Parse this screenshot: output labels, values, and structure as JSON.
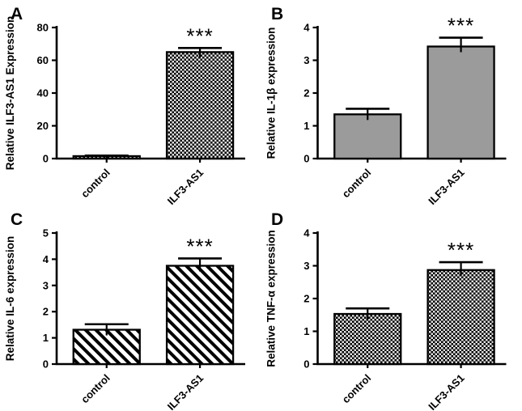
{
  "colors": {
    "ink": "#000000",
    "background": "#ffffff",
    "gray_fill": "#9b9b9b",
    "checker_light": "#e2e2e2",
    "hatch_bg": "#ffffff"
  },
  "chart_data": [
    {
      "panel": "A",
      "type": "bar",
      "categories": [
        "control",
        "ILF3-AS1"
      ],
      "values": [
        1.5,
        65
      ],
      "errors": [
        0.3,
        2.5
      ],
      "ylabel": "Relative ILF3-AS1 Expression",
      "xlabel": "",
      "ylim": [
        0,
        80
      ],
      "yticks": [
        0,
        20,
        40,
        60,
        80
      ],
      "significance": {
        "index": 1,
        "label": "***"
      },
      "fill_style": "checker",
      "fill_color": "#e2e2e2",
      "grid": false,
      "legend": false
    },
    {
      "panel": "B",
      "type": "bar",
      "categories": [
        "control",
        "ILF3-AS1"
      ],
      "values": [
        1.35,
        3.42
      ],
      "errors": [
        0.17,
        0.27
      ],
      "ylabel": "Relative IL-1β expression",
      "xlabel": "",
      "ylim": [
        0,
        4
      ],
      "yticks": [
        0,
        1,
        2,
        3,
        4
      ],
      "significance": {
        "index": 1,
        "label": "***"
      },
      "fill_style": "solid",
      "fill_color": "#9b9b9b",
      "grid": false,
      "legend": false
    },
    {
      "panel": "C",
      "type": "bar",
      "categories": [
        "control",
        "ILF3-AS1"
      ],
      "values": [
        1.31,
        3.75
      ],
      "errors": [
        0.21,
        0.28
      ],
      "ylabel": "Relative IL-6 expression",
      "xlabel": "",
      "ylim": [
        0,
        5
      ],
      "yticks": [
        0,
        1,
        2,
        3,
        4,
        5
      ],
      "significance": {
        "index": 1,
        "label": "***"
      },
      "fill_style": "diagonal-hatch",
      "fill_color": "#ffffff",
      "grid": false,
      "legend": false
    },
    {
      "panel": "D",
      "type": "bar",
      "categories": [
        "control",
        "ILF3-AS1"
      ],
      "values": [
        1.53,
        2.87
      ],
      "errors": [
        0.17,
        0.24
      ],
      "ylabel": "Relative TNF-α expression",
      "xlabel": "",
      "ylim": [
        0,
        4
      ],
      "yticks": [
        0,
        1,
        2,
        3,
        4
      ],
      "significance": {
        "index": 1,
        "label": "***"
      },
      "fill_style": "checker",
      "fill_color": "#e2e2e2",
      "grid": false,
      "legend": false
    }
  ]
}
